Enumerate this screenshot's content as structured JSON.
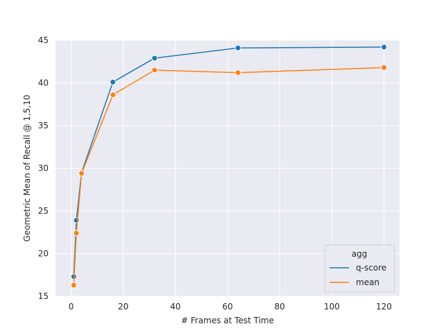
{
  "chart_data": {
    "type": "line",
    "title": "",
    "xlabel": "# Frames at Test Time",
    "ylabel": "Geometric Mean of Recall @ 1,5,10",
    "xlim": [
      -6,
      126
    ],
    "ylim": [
      15,
      45
    ],
    "xticks": [
      0,
      20,
      40,
      60,
      80,
      100,
      120
    ],
    "yticks": [
      15,
      20,
      25,
      30,
      35,
      40,
      45
    ],
    "grid": true,
    "legend": {
      "title": "agg",
      "placement": "lower-right"
    },
    "series": [
      {
        "name": "q-score",
        "color": "#1f77b4",
        "marker": "circle",
        "x": [
          1,
          2,
          4,
          16,
          32,
          64,
          120
        ],
        "y": [
          17.3,
          23.9,
          29.5,
          40.1,
          42.9,
          44.1,
          44.2
        ]
      },
      {
        "name": "mean",
        "color": "#ff7f0e",
        "marker": "circle",
        "x": [
          1,
          2,
          4,
          16,
          32,
          64,
          120
        ],
        "y": [
          16.3,
          22.4,
          29.4,
          38.6,
          41.5,
          41.2,
          41.8
        ]
      }
    ]
  }
}
